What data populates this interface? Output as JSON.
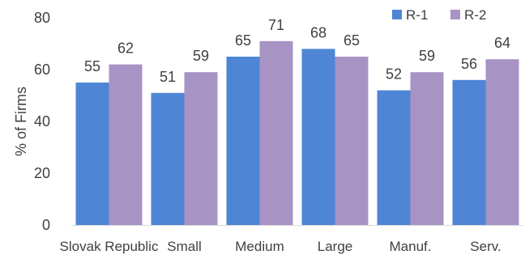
{
  "chart_data": {
    "type": "bar",
    "categories": [
      "Slovak Republic",
      "Small",
      "Medium",
      "Large",
      "Manuf.",
      "Serv."
    ],
    "series": [
      {
        "name": "R-1",
        "values": [
          55,
          51,
          65,
          68,
          52,
          56
        ],
        "color": "#4E86D5"
      },
      {
        "name": "R-2",
        "values": [
          62,
          59,
          71,
          65,
          59,
          64
        ],
        "color": "#A893C5"
      }
    ],
    "ylabel": "% of Firms",
    "ylim": [
      0,
      80
    ],
    "yticks": [
      0,
      20,
      40,
      60,
      80
    ],
    "grid": false,
    "legend": "top-right"
  }
}
